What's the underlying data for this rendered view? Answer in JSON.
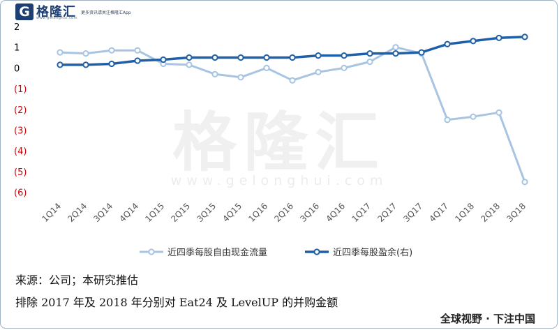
{
  "header": {
    "logo_letter": "G",
    "brand": "格隆汇",
    "url": "www.gelonghui.com",
    "slogan": "更多资讯请关注格隆汇App"
  },
  "watermark": {
    "text": "格隆汇",
    "url": "www.gelonghui.com"
  },
  "chart_data": {
    "type": "line",
    "title": "",
    "categories": [
      "1Q14",
      "2Q14",
      "3Q14",
      "4Q14",
      "1Q15",
      "2Q15",
      "3Q15",
      "4Q15",
      "1Q16",
      "2Q16",
      "3Q16",
      "4Q16",
      "1Q17",
      "2Q17",
      "3Q17",
      "4Q17",
      "1Q18",
      "2Q18",
      "3Q18"
    ],
    "y_ticks": [
      "2",
      "1",
      "0",
      "(1)",
      "(2)",
      "(3)",
      "(4)",
      "(5)",
      "(6)"
    ],
    "y_tick_colors": [
      "#000000",
      "#000000",
      "#000000",
      "#cc0000",
      "#cc0000",
      "#cc0000",
      "#cc0000",
      "#cc0000",
      "#cc0000"
    ],
    "ylim": [
      -6,
      2
    ],
    "series": [
      {
        "name": "近四季每股自由现金流量",
        "axis": "left",
        "color": "#a7c4e2",
        "values": [
          0.75,
          0.7,
          0.85,
          0.85,
          0.2,
          0.15,
          -0.3,
          -0.45,
          0.0,
          -0.6,
          -0.2,
          0.0,
          0.3,
          1.0,
          0.7,
          -2.5,
          -2.35,
          -2.15,
          -5.5
        ]
      },
      {
        "name": "近四季每股盈余(右)",
        "axis": "right",
        "color": "#1f5fa8",
        "values": [
          0.15,
          0.15,
          0.2,
          0.35,
          0.4,
          0.5,
          0.5,
          0.5,
          0.5,
          0.5,
          0.6,
          0.6,
          0.7,
          0.7,
          0.75,
          1.15,
          1.3,
          1.45,
          1.5
        ]
      }
    ],
    "legend_position": "bottom"
  },
  "source_note": "来源：公司；本研究推估",
  "footnote": "排除 2017 年及 2018 年分别对 Eat24 及 LevelUP 的并购金额",
  "footer_slogan": "全球视野 · 下注中国"
}
